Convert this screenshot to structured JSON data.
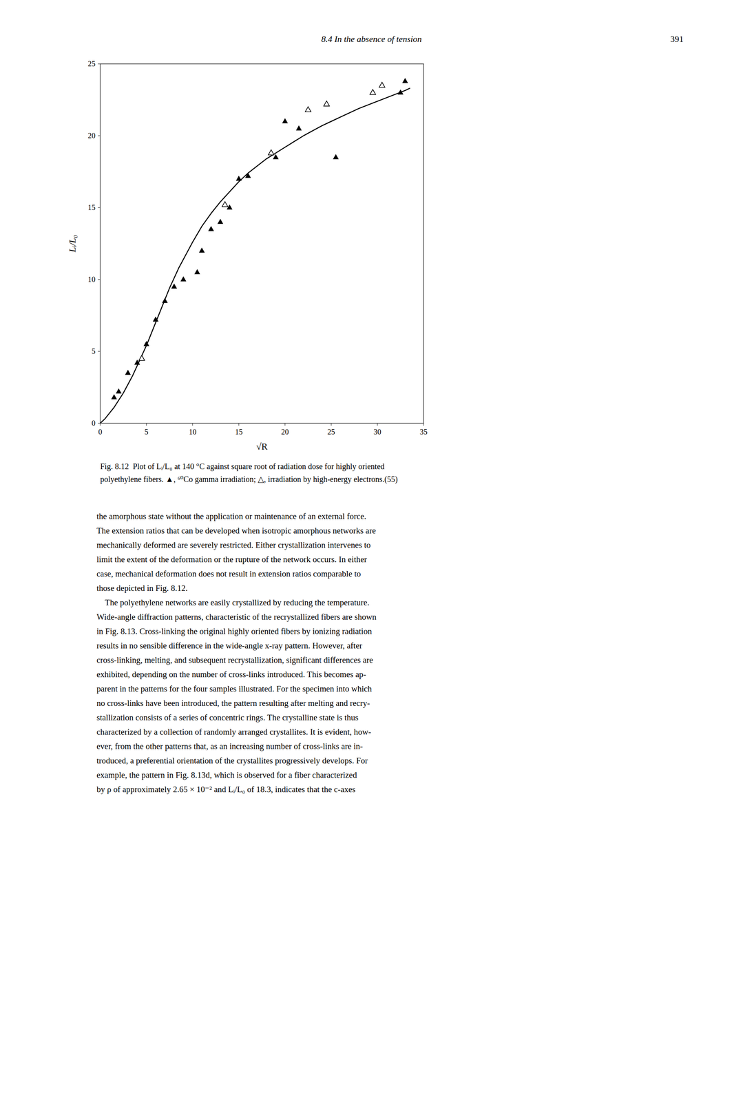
{
  "chart_data": {
    "type": "scatter",
    "header": "8.4 In the absence of tension",
    "page_number": "391",
    "x_label": "√R",
    "y_label": "Lᵢ/L₀",
    "xlim": [
      0,
      35
    ],
    "ylim": [
      0,
      25
    ],
    "xticks": [
      0,
      5,
      10,
      15,
      20,
      25,
      30,
      35
    ],
    "yticks": [
      0,
      5,
      10,
      15,
      20,
      25
    ],
    "grid": false,
    "series": [
      {
        "type": "line",
        "color": "#000000",
        "line_style": "solid",
        "x": [
          0.0,
          0.5,
          1.0,
          1.5,
          2.0,
          2.5,
          3.0,
          3.5,
          4.0,
          4.5,
          5.0,
          5.5,
          6.0,
          6.5,
          7.0,
          7.5,
          8.0,
          8.5,
          9.0,
          9.5,
          10.0,
          11.0,
          12.0,
          13.0,
          14.0,
          15.0,
          16.0,
          17.0,
          18.0,
          19.0,
          20.0,
          21.0,
          22.0,
          23.0,
          24.0,
          25.0,
          26.0,
          27.0,
          28.0,
          29.0,
          30.0,
          31.0,
          32.0,
          33.0,
          33.5
        ],
        "values": [
          0.0,
          0.3,
          0.7,
          1.1,
          1.6,
          2.1,
          2.7,
          3.3,
          4.0,
          4.7,
          5.4,
          6.2,
          7.0,
          7.8,
          8.6,
          9.4,
          10.1,
          10.8,
          11.4,
          12.0,
          12.6,
          13.7,
          14.6,
          15.4,
          16.1,
          16.8,
          17.4,
          17.9,
          18.4,
          18.8,
          19.2,
          19.6,
          20.0,
          20.35,
          20.7,
          21.0,
          21.3,
          21.6,
          21.9,
          22.15,
          22.4,
          22.65,
          22.9,
          23.15,
          23.3
        ]
      },
      {
        "type": "scatter",
        "color": "#000000",
        "marker": "triangle",
        "x": [
          1.5,
          2.0,
          3.0,
          4.0,
          5.0,
          6.0,
          7.0,
          8.0,
          9.0,
          10.5,
          11.0,
          12.0,
          13.0,
          14.0,
          15.0,
          16.0,
          19.0,
          20.0,
          21.5,
          25.5,
          32.5,
          33.0
        ],
        "values": [
          1.8,
          2.2,
          3.5,
          4.2,
          5.5,
          7.2,
          8.5,
          9.5,
          10.0,
          10.5,
          12.0,
          13.5,
          14.0,
          15.0,
          17.0,
          17.2,
          18.5,
          21.0,
          20.5,
          18.5,
          23.0,
          23.8
        ]
      },
      {
        "type": "scatter",
        "color": "#000000",
        "marker": "triangle-open",
        "x": [
          4.5,
          13.5,
          18.5,
          22.5,
          24.5,
          29.5,
          30.5
        ],
        "values": [
          4.5,
          15.2,
          18.8,
          21.8,
          22.2,
          23.0,
          23.5
        ]
      }
    ],
    "caption": [
      "Fig. 8.12  Plot of Lᵢ/L₀ at 140 °C against square root of radiation dose for highly oriented",
      "polyethylene fibers. ▲, ⁶⁰Co gamma irradiation; △, irradiation by high-energy electrons.(55)"
    ],
    "body_text": [
      "the amorphous state without the application or maintenance of an external force.",
      "The extension ratios that can be developed when isotropic amorphous networks are",
      "mechanically deformed are severely restricted. Either crystallization intervenes to",
      "limit the extent of the deformation or the rupture of the network occurs. In either",
      "case, mechanical deformation does not result in extension ratios comparable to",
      "those depicted in Fig. 8.12.",
      "    The polyethylene networks are easily crystallized by reducing the temperature.",
      "Wide-angle diffraction patterns, characteristic of the recrystallized fibers are shown",
      "in Fig. 8.13. Cross-linking the original highly oriented fibers by ionizing radiation",
      "results in no sensible difference in the wide-angle x-ray pattern. However, after",
      "cross-linking, melting, and subsequent recrystallization, significant differences are",
      "exhibited, depending on the number of cross-links introduced. This becomes ap-",
      "parent in the patterns for the four samples illustrated. For the specimen into which",
      "no cross-links have been introduced, the pattern resulting after melting and recry-",
      "stallization consists of a series of concentric rings. The crystalline state is thus",
      "characterized by a collection of randomly arranged crystallites. It is evident, how-",
      "ever, from the other patterns that, as an increasing number of cross-links are in-",
      "troduced, a preferential orientation of the crystallites progressively develops. For",
      "example, the pattern in Fig. 8.13d, which is observed for a fiber characterized",
      "by ρ of approximately 2.65 × 10⁻² and Lᵢ/L₀ of 18.3, indicates that the c-axes"
    ]
  }
}
